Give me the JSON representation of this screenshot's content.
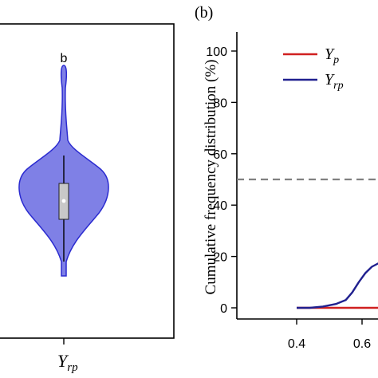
{
  "chart_data": [
    {
      "type": "violin",
      "panel_label": "",
      "categories": [
        "Y",
        "rp"
      ],
      "category_label": {
        "main": "Y",
        "sub": "rp"
      },
      "annotation": "b",
      "y_approx": {
        "min": -0.6,
        "q1": 0.35,
        "median": 0.45,
        "q3": 0.55,
        "max": 1.0,
        "outlier_max": 2.1
      },
      "colors": {
        "fill": "#7f80e6",
        "stroke": "#2b2bd0",
        "box": "#c8c8c8"
      }
    },
    {
      "type": "line",
      "panel_label": "(b)",
      "ylabel": "Cumulative frequency distribution (%)",
      "xlabel": "",
      "xlim": [
        0.35,
        0.68
      ],
      "ylim": [
        -3,
        106
      ],
      "x_ticks": [
        "0.4",
        "0.6"
      ],
      "y_ticks": [
        "0",
        "20",
        "40",
        "60",
        "80",
        "100"
      ],
      "reference_line": {
        "y": 50,
        "style": "dashed",
        "color": "#808080"
      },
      "series": [
        {
          "name": "Y",
          "name_sub": "p",
          "color": "#d02020",
          "points": [
            [
              0.4,
              0
            ],
            [
              0.5,
              0
            ],
            [
              0.6,
              0
            ],
            [
              0.68,
              0
            ]
          ]
        },
        {
          "name": "Y",
          "name_sub": "rp",
          "color": "#20208f",
          "points": [
            [
              0.4,
              0
            ],
            [
              0.44,
              0
            ],
            [
              0.48,
              0.5
            ],
            [
              0.52,
              1.5
            ],
            [
              0.55,
              3
            ],
            [
              0.57,
              6
            ],
            [
              0.59,
              10
            ],
            [
              0.61,
              13.5
            ],
            [
              0.63,
              16
            ],
            [
              0.66,
              18
            ],
            [
              0.68,
              19
            ]
          ]
        }
      ]
    }
  ]
}
